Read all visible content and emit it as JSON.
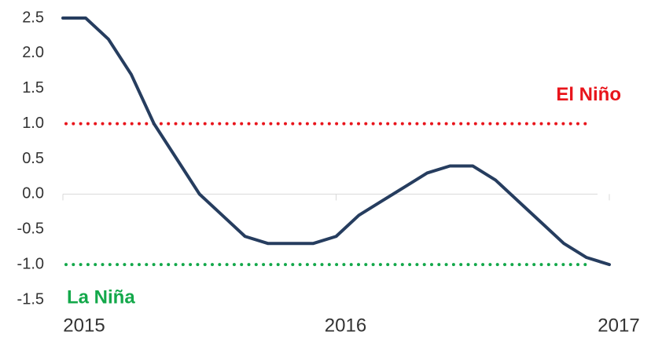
{
  "chart_data": {
    "type": "line",
    "categories": [
      "2015",
      null,
      null,
      null,
      null,
      null,
      null,
      null,
      null,
      null,
      null,
      null,
      "2016",
      null,
      null,
      null,
      null,
      null,
      null,
      null,
      null,
      null,
      null,
      null,
      "2017"
    ],
    "series": [
      {
        "color": "#263d5f",
        "values": [
          2.5,
          2.5,
          2.2,
          1.7,
          1.0,
          0.5,
          0.0,
          -0.3,
          -0.6,
          -0.7,
          -0.7,
          -0.7,
          -0.6,
          -0.3,
          -0.1,
          0.1,
          0.3,
          0.4,
          0.4,
          0.2,
          -0.1,
          -0.4,
          -0.7,
          -0.9,
          -1.0
        ]
      }
    ],
    "ylim": [
      -1.5,
      2.5
    ],
    "yticks": [
      {
        "value": -1.5,
        "label": "-1.5"
      },
      {
        "value": -1.0,
        "label": "-1.0"
      },
      {
        "value": -0.5,
        "label": "-0.5"
      },
      {
        "value": 0,
        "label": "0.0"
      },
      {
        "value": 0.5,
        "label": "0.5"
      },
      {
        "value": 1.0,
        "label": "1.0"
      },
      {
        "value": 1.5,
        "label": "1.5"
      },
      {
        "value": 2.0,
        "label": "2.0"
      },
      {
        "value": 2.5,
        "label": "2.5"
      }
    ],
    "reference_lines": [
      {
        "value": 1.0,
        "label": "El Niño",
        "color": "#e8141b"
      },
      {
        "value": -1.0,
        "label": "La Niña",
        "color": "#13a84a"
      }
    ]
  }
}
